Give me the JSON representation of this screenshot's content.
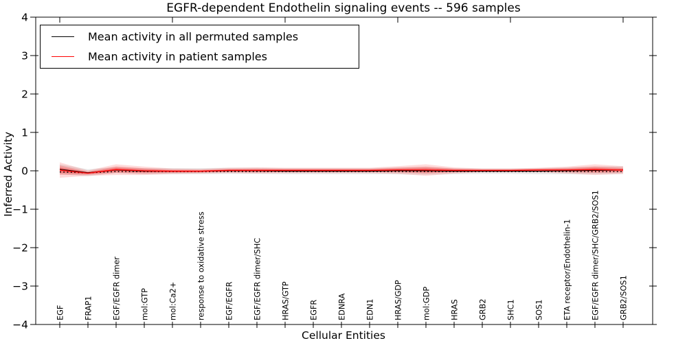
{
  "chart_data": {
    "type": "line",
    "title": "EGFR-dependent Endothelin signaling events -- 596 samples",
    "xlabel": "Cellular Entities",
    "ylabel": "Inferred Activity",
    "ylim": [
      -4,
      4
    ],
    "yticks": [
      {
        "value": 4,
        "label": "4"
      },
      {
        "value": 3,
        "label": "3"
      },
      {
        "value": 2,
        "label": "2"
      },
      {
        "value": 1,
        "label": "1"
      },
      {
        "value": 0,
        "label": "0"
      },
      {
        "value": -1,
        "label": "−1"
      },
      {
        "value": -2,
        "label": "−2"
      },
      {
        "value": -3,
        "label": "−3"
      },
      {
        "value": -4,
        "label": "−4"
      }
    ],
    "grid": false,
    "legend_position": "upper-left",
    "categories": [
      "EGF",
      "FRAP1",
      "EGF/EGFR dimer",
      "mol:GTP",
      "mol:Ca2+",
      "response to oxidative stress",
      "EGF/EGFR",
      "EGF/EGFR dimer/SHC",
      "HRAS/GTP",
      "EGFR",
      "EDNRA",
      "EDN1",
      "HRAS/GDP",
      "mol:GDP",
      "HRAS",
      "GRB2",
      "SHC1",
      "SOS1",
      "ETA receptor/Endothelin-1",
      "EGF/EGFR dimer/SHC/GRB2/SOS1",
      "GRB2/SOS1"
    ],
    "series": [
      {
        "name": "Mean activity in all permuted samples",
        "color": "#000000",
        "style": "solid",
        "values": [
          0.04,
          -0.05,
          0.02,
          -0.01,
          -0.01,
          -0.01,
          0.0,
          0.0,
          -0.01,
          -0.01,
          -0.01,
          -0.01,
          0.0,
          0.0,
          -0.01,
          -0.01,
          -0.01,
          -0.01,
          0.0,
          0.01,
          0.02
        ]
      },
      {
        "name": "Mean activity in patient samples",
        "color": "#ff0000",
        "style": "solid",
        "values": [
          0.02,
          -0.06,
          0.03,
          0.0,
          -0.01,
          -0.01,
          0.01,
          0.01,
          0.01,
          0.01,
          0.01,
          0.01,
          0.02,
          0.02,
          0.01,
          0.01,
          0.01,
          0.02,
          0.02,
          0.03,
          0.02
        ]
      },
      {
        "name": "zero-baseline-dotted",
        "color": "#000000",
        "style": "dotted",
        "values": [
          -0.03,
          -0.05,
          -0.02,
          -0.02,
          -0.02,
          -0.02,
          -0.02,
          -0.02,
          -0.02,
          -0.02,
          -0.02,
          -0.02,
          -0.02,
          -0.02,
          -0.02,
          -0.02,
          -0.02,
          -0.02,
          -0.02,
          -0.02,
          -0.02
        ]
      }
    ],
    "bands": [
      {
        "name": "permuted-samples-spread",
        "color": "#999999",
        "opacity": 0.22,
        "center_series": 0,
        "half_widths": [
          0.13,
          0.09,
          0.08,
          0.08,
          0.08,
          0.08,
          0.08,
          0.08,
          0.08,
          0.08,
          0.08,
          0.08,
          0.09,
          0.1,
          0.08,
          0.07,
          0.07,
          0.08,
          0.09,
          0.1,
          0.1
        ]
      },
      {
        "name": "patient-samples-spread",
        "color": "#ff0000",
        "center_series": 1,
        "layer_scales": [
          1.0,
          0.6,
          0.33
        ],
        "layer_opacities": [
          0.14,
          0.2,
          0.28
        ],
        "half_widths": [
          0.2,
          0.07,
          0.14,
          0.11,
          0.07,
          0.06,
          0.07,
          0.08,
          0.07,
          0.07,
          0.07,
          0.07,
          0.1,
          0.15,
          0.08,
          0.05,
          0.05,
          0.06,
          0.09,
          0.14,
          0.1
        ]
      }
    ],
    "legend": {
      "entries": [
        {
          "label": "Mean activity in all permuted samples",
          "color": "#000000"
        },
        {
          "label": "Mean activity in patient samples",
          "color": "#ff0000"
        }
      ]
    }
  }
}
